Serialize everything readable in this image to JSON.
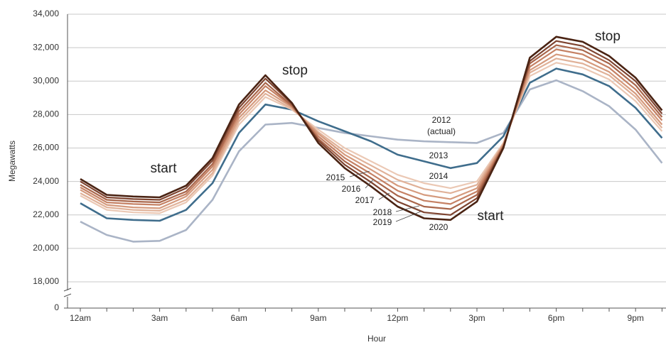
{
  "chart_data": {
    "type": "line",
    "x_label": "Hour",
    "y_label": "Megawatts",
    "categories": [
      "12am",
      null,
      null,
      "3am",
      null,
      null,
      "6am",
      null,
      null,
      "9am",
      null,
      null,
      "12pm",
      null,
      null,
      "3pm",
      null,
      null,
      "6pm",
      null,
      null,
      "9pm",
      null
    ],
    "ylim": [
      18000,
      34000
    ],
    "yticks": [
      0,
      {
        "value": 18000,
        "label": "18,000"
      },
      {
        "value": 20000,
        "label": "20,000"
      },
      {
        "value": 22000,
        "label": "22,000"
      },
      {
        "value": 24000,
        "label": "24,000"
      },
      {
        "value": 26000,
        "label": "26,000"
      },
      {
        "value": 28000,
        "label": "28,000"
      },
      {
        "value": 30000,
        "label": "30,000"
      },
      {
        "value": 32000,
        "label": "32,000"
      },
      {
        "value": 34000,
        "label": "34,000"
      }
    ],
    "axis_break": true,
    "grid": true,
    "series": [
      {
        "name": "2012",
        "color": "#aab4c6",
        "values": [
          21600,
          20800,
          20400,
          20450,
          21100,
          22900,
          25800,
          27400,
          27500,
          27200,
          26900,
          26700,
          26500,
          26400,
          26350,
          26300,
          26900,
          29500,
          30050,
          29400,
          28500,
          27100,
          25100
        ]
      },
      {
        "name": "2013",
        "color": "#3f6d8c",
        "values": [
          22700,
          21800,
          21700,
          21650,
          22300,
          23900,
          26900,
          28600,
          28300,
          27600,
          27000,
          26400,
          25600,
          25200,
          24800,
          25100,
          26700,
          29900,
          30750,
          30400,
          29700,
          28400,
          26600
        ]
      },
      {
        "name": "2014",
        "color": "#ebc8b4",
        "values": [
          23150,
          22300,
          22150,
          22100,
          22750,
          24350,
          27400,
          29050,
          28300,
          27100,
          26000,
          25200,
          24400,
          23900,
          23600,
          24000,
          26300,
          30300,
          31100,
          30800,
          30100,
          28800,
          27000
        ]
      },
      {
        "name": "2015",
        "color": "#e0b198",
        "values": [
          23300,
          22450,
          22300,
          22250,
          22900,
          24500,
          27600,
          29250,
          28350,
          26950,
          25800,
          24950,
          24100,
          23550,
          23300,
          23800,
          26250,
          30500,
          31350,
          31050,
          30350,
          29050,
          27200
        ]
      },
      {
        "name": "2016",
        "color": "#d59a7d",
        "values": [
          23500,
          22600,
          22450,
          22400,
          23100,
          24700,
          27800,
          29450,
          28450,
          26850,
          25600,
          24700,
          23750,
          23200,
          22950,
          23600,
          26200,
          30650,
          31600,
          31300,
          30550,
          29250,
          27400
        ]
      },
      {
        "name": "2017",
        "color": "#c58164",
        "values": [
          23650,
          22750,
          22650,
          22600,
          23250,
          24900,
          28000,
          29700,
          28500,
          26700,
          25400,
          24450,
          23450,
          22850,
          22650,
          23400,
          26150,
          30850,
          31900,
          31600,
          30800,
          29500,
          27650
        ]
      },
      {
        "name": "2018",
        "color": "#a9664b",
        "values": [
          23800,
          22900,
          22800,
          22750,
          23400,
          25050,
          28200,
          29900,
          28550,
          26550,
          25200,
          24200,
          23150,
          22500,
          22350,
          23200,
          26100,
          31050,
          32150,
          31850,
          31050,
          29750,
          27850
        ]
      },
      {
        "name": "2019",
        "color": "#7e4430",
        "values": [
          24000,
          23050,
          22950,
          22900,
          23600,
          25250,
          28400,
          30150,
          28650,
          26450,
          25000,
          23950,
          22800,
          22150,
          22000,
          23000,
          26050,
          31200,
          32400,
          32100,
          31250,
          30000,
          28050
        ]
      },
      {
        "name": "2020",
        "color": "#4a2313",
        "values": [
          24150,
          23200,
          23100,
          23050,
          23750,
          25400,
          28600,
          30350,
          28700,
          26300,
          24800,
          23700,
          22500,
          21800,
          21700,
          22800,
          26000,
          31400,
          32650,
          32350,
          31500,
          30200,
          28250
        ]
      }
    ],
    "annotations": [
      "start",
      "stop",
      "start",
      "stop",
      "(actual)"
    ]
  }
}
